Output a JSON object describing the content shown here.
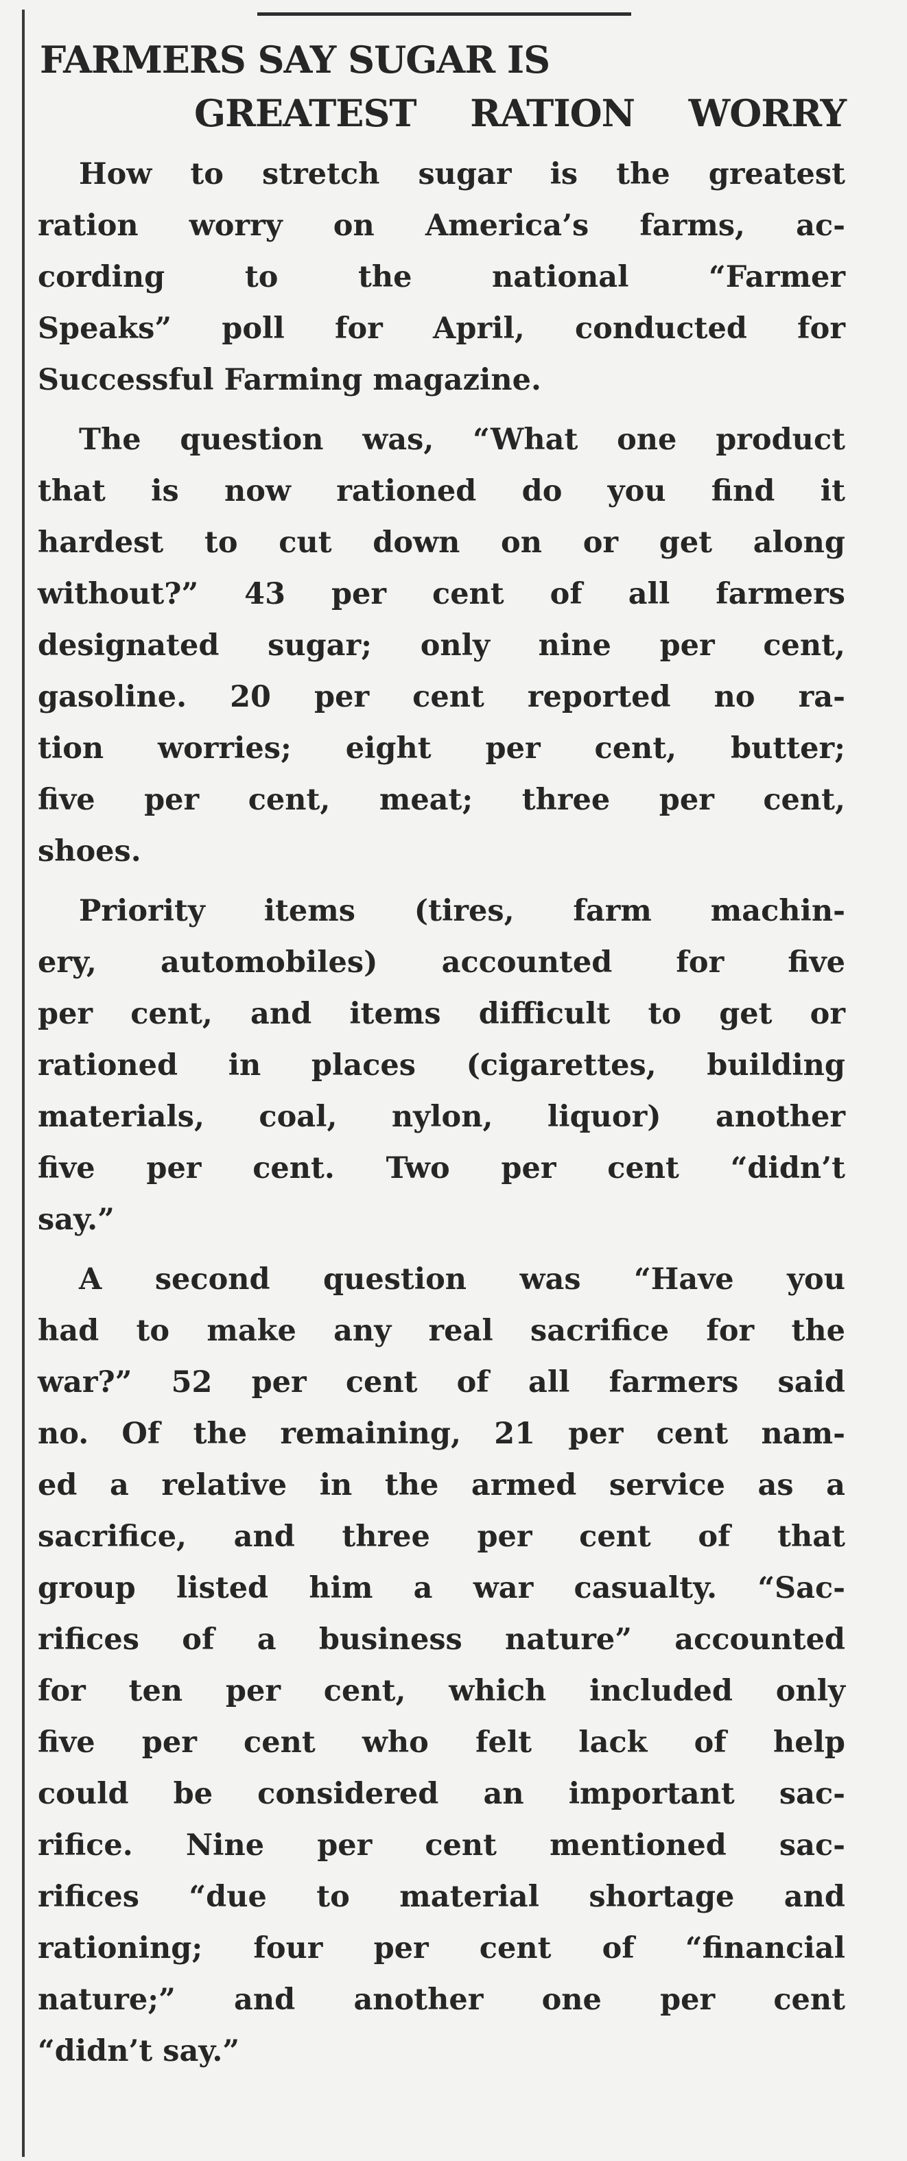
{
  "article": {
    "headline": [
      "FARMERS SAY SUGAR IS",
      "GREATEST RATION WORRY"
    ],
    "paragraphs": [
      [
        "How to stretch sugar is the greatest",
        "ration worry on America’s farms, ac-",
        "cording to the national “Farmer",
        "Speaks” poll for April, conducted for",
        "Successful Farming magazine."
      ],
      [
        "The question was, “What one product",
        "that is now rationed do you find it",
        "hardest to cut down on or get along",
        "without?” 43 per cent of all farmers",
        "designated sugar; only nine per cent,",
        "gasoline. 20 per cent reported no ra-",
        "tion worries; eight per cent, butter;",
        "five per cent, meat; three per cent,",
        "shoes."
      ],
      [
        "Priority items (tires, farm machin-",
        "ery, automobiles) accounted for five",
        "per cent, and items difficult to get or",
        "rationed in places (cigarettes, building",
        "materials, coal, nylon, liquor) another",
        "five per cent. Two per cent “didn’t",
        "say.”"
      ],
      [
        "A second question was “Have you",
        "had to make any real sacrifice for the",
        "war?” 52 per cent of all farmers said",
        "no. Of the remaining, 21 per cent nam-",
        "ed a relative in the armed service as a",
        "sacrifice, and three per cent of that",
        "group listed him a war casualty. “Sac-",
        "rifices of a business nature” accounted",
        "for ten per cent, which included only",
        "five per cent who felt lack of help",
        "could be considered an important sac-",
        "rifice. Nine per cent mentioned sac-",
        "rifices “due to material shortage and",
        "rationing; four per cent of “financial",
        "nature;” and another one per cent",
        "“didn’t say.”"
      ]
    ]
  }
}
